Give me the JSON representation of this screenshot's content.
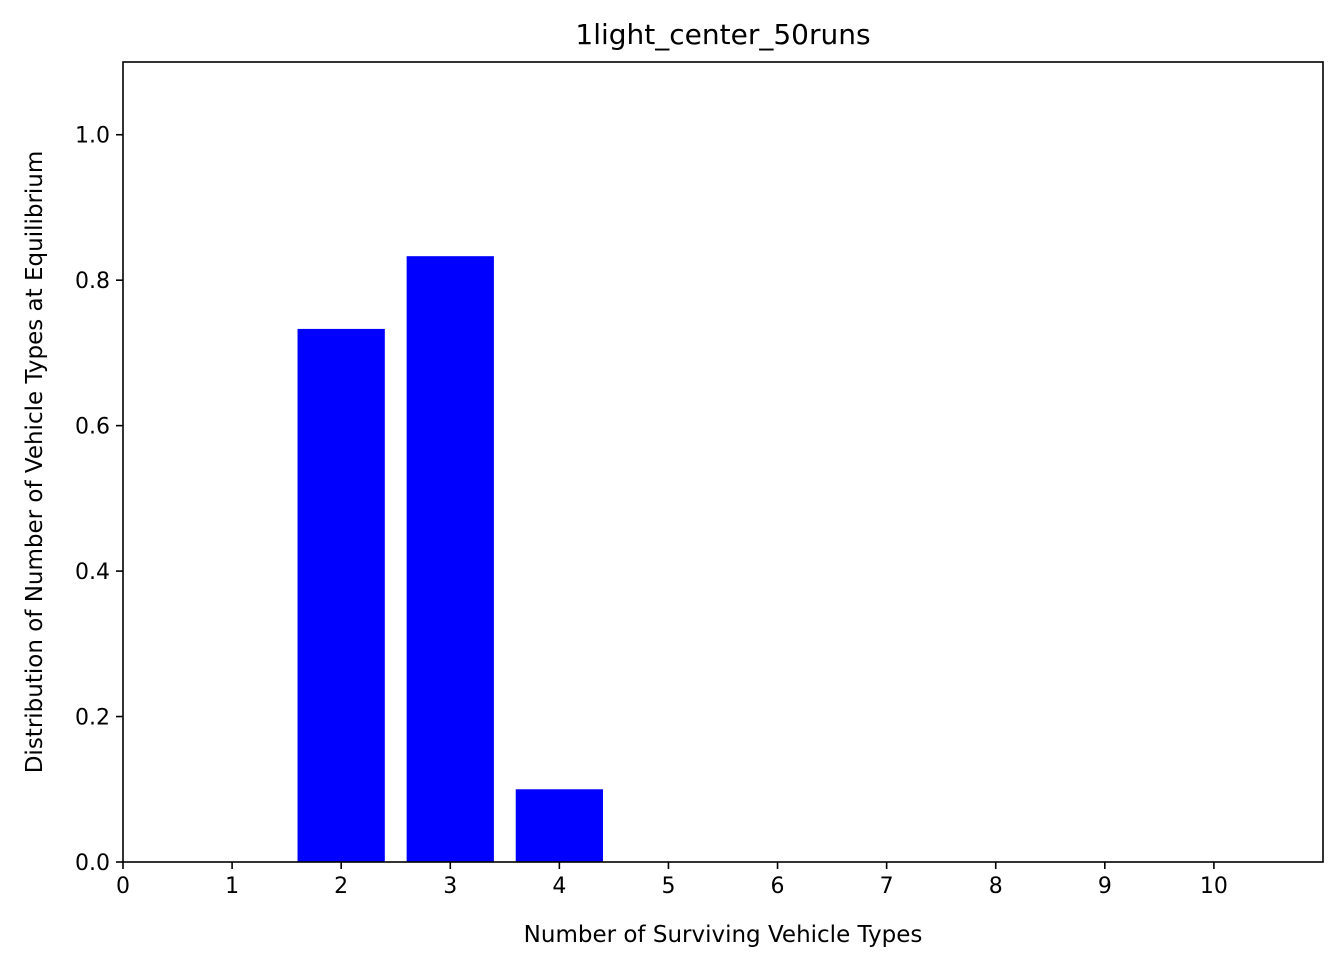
{
  "chart_data": {
    "type": "bar",
    "title": "1light_center_50runs",
    "xlabel": "Number of Surviving Vehicle Types",
    "ylabel": "Distribution of Number of Vehicle Types at Equilibrium",
    "x": [
      0,
      1,
      2,
      3,
      4,
      5,
      6,
      7,
      8,
      9,
      10
    ],
    "values": [
      0,
      0,
      0.733,
      0.833,
      0.1,
      0,
      0,
      0,
      0,
      0,
      0
    ],
    "xlim": [
      0,
      11
    ],
    "ylim": [
      0,
      1.1
    ],
    "xticks": [
      "0",
      "1",
      "2",
      "3",
      "4",
      "5",
      "6",
      "7",
      "8",
      "9",
      "10"
    ],
    "yticks": [
      "0.0",
      "0.2",
      "0.4",
      "0.6",
      "0.8",
      "1.0"
    ],
    "ytick_values": [
      0,
      0.2,
      0.4,
      0.6,
      0.8,
      1.0
    ],
    "bar_color": "#0000ff",
    "grid": false,
    "legend": "none"
  }
}
